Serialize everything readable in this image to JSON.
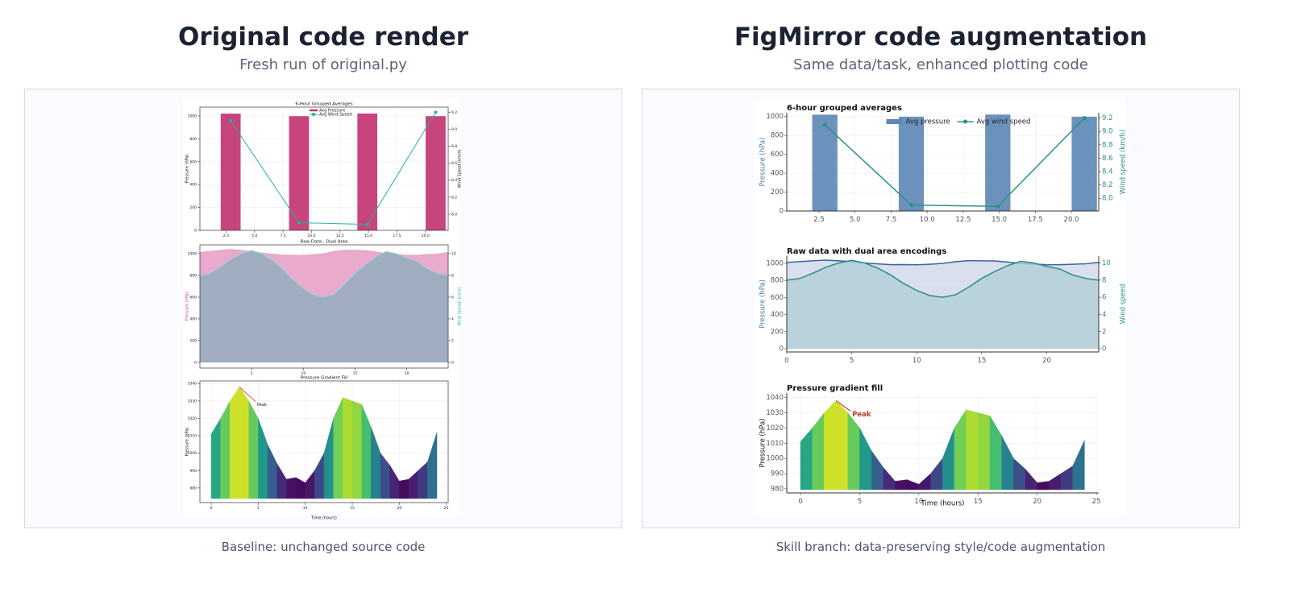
{
  "panels": [
    {
      "title": "Original code render",
      "subtitle": "Fresh run of original.py",
      "caption": "Baseline: unchanged source code"
    },
    {
      "title": "FigMirror code augmentation",
      "subtitle": "Same data/task, enhanced plotting code",
      "caption": "Skill branch: data-preserving style/code augmentation"
    }
  ],
  "chart_data": [
    {
      "type": "combo",
      "title": "6-Hour Grouped Averages",
      "x": [
        2.9,
        8.9,
        14.9,
        20.9
      ],
      "xlim": [
        0.2,
        22
      ],
      "xticks": [
        2.5,
        {
          "value": 5,
          "label": "5.0"
        },
        7.5,
        {
          "value": 10,
          "label": "10.0"
        },
        12.5,
        {
          "value": 15,
          "label": "15.0"
        },
        17.5,
        {
          "value": 20,
          "label": "20.0"
        }
      ],
      "ylim": [
        0,
        1077
      ],
      "yticks": [
        0,
        200,
        400,
        600,
        800,
        1000
      ],
      "y2lim": [
        7.81,
        9.26
      ],
      "y2ticks": [
        {
          "value": 8,
          "label": "8.0"
        },
        8.2,
        8.4,
        8.6,
        8.8,
        {
          "value": 9,
          "label": "9.0"
        },
        9.2
      ],
      "ylabel": "Pressure (hPa)",
      "y2label": "Wind Speed (km/h)",
      "grid": true,
      "legend": "upper center",
      "series": [
        {
          "name": "Avg Pressure",
          "color": "#c2306e",
          "values": [
            1020,
            998,
            1021,
            998
          ]
        },
        {
          "name": "Avg Wind Speed",
          "color": "#20b2aa",
          "axis": "y2",
          "values": [
            9.1,
            7.9,
            7.88,
            9.2
          ]
        }
      ]
    },
    {
      "type": "area",
      "title": "Raw Data - Dual Area",
      "x": [
        0,
        1,
        2,
        3,
        4,
        5,
        6,
        7,
        8,
        9,
        10,
        11,
        12,
        13,
        14,
        15,
        16,
        17,
        18,
        19,
        20,
        21,
        22,
        23,
        24
      ],
      "xlim": [
        0,
        24
      ],
      "xticks": [
        5,
        10,
        15,
        20
      ],
      "ylim": [
        -52,
        1081
      ],
      "yticks": [
        0,
        200,
        400,
        600,
        800,
        1000
      ],
      "y2lim": [
        -0.52,
        10.81
      ],
      "y2ticks": [
        0,
        2,
        4,
        6,
        8,
        10
      ],
      "ylabel": "Pressure (hPa)",
      "y2label": "Wind Speed (km/h)",
      "ylabel_color": "#d6457f",
      "y2label_color": "#20b2aa",
      "grid": true,
      "series": [
        {
          "color": "#e79ac2",
          "fill": "#e9aacd",
          "values": [
            1011,
            1020,
            1030,
            1038,
            1030,
            1020,
            1005,
            994,
            985,
            986,
            983,
            990,
            1000,
            1020,
            1032,
            1030,
            1028,
            1015,
            1000,
            993,
            984,
            985,
            990,
            995,
            1012
          ]
        },
        {
          "color": "#8fdad3",
          "fill": "#a0adc0",
          "axis": "y2",
          "values": [
            8.0,
            8.2,
            8.8,
            9.5,
            10.0,
            10.3,
            10.0,
            9.4,
            8.6,
            7.6,
            6.8,
            6.2,
            6.0,
            6.3,
            7.2,
            8.2,
            9.0,
            9.7,
            10.2,
            10.0,
            9.6,
            9.3,
            8.6,
            8.2,
            8.0
          ]
        }
      ]
    },
    {
      "type": "gradient",
      "title": "Pressure Gradient Fill",
      "x": [
        0,
        1,
        2,
        3,
        4,
        5,
        6,
        7,
        8,
        9,
        10,
        11,
        12,
        13,
        14,
        15,
        16,
        17,
        18,
        19,
        20,
        21,
        22,
        23,
        24
      ],
      "xlim": [
        -1.2,
        25.2
      ],
      "xticks": [
        0,
        5,
        10,
        15,
        20,
        25
      ],
      "ylim": [
        971.6,
        1041.5
      ],
      "yticks": [
        980,
        990,
        1000,
        1010,
        1020,
        1030,
        1040
      ],
      "ylabel": "Pressure (hPa)",
      "xlabel": "Time (hours)",
      "annotation": "Peak",
      "grid": true,
      "values": [
        1011,
        1020,
        1030,
        1038,
        1030,
        1020,
        1005,
        994,
        985,
        986,
        983,
        990,
        1000,
        1020,
        1032,
        1030,
        1028,
        1015,
        1000,
        993,
        984,
        985,
        990,
        995,
        1012
      ]
    },
    {
      "type": "combo",
      "title": "6-hour grouped averages",
      "x": [
        2.9,
        8.9,
        14.9,
        20.9
      ],
      "xlim": [
        0.26,
        21.9
      ],
      "xticks": [
        2.5,
        {
          "value": 5,
          "label": "5.0"
        },
        7.5,
        {
          "value": 10,
          "label": "10.0"
        },
        12.5,
        {
          "value": 15,
          "label": "15.0"
        },
        17.5,
        {
          "value": 20,
          "label": "20.0"
        }
      ],
      "ylim": [
        0,
        1040
      ],
      "yticks": [
        0,
        200,
        400,
        600,
        800,
        1000
      ],
      "y2lim": [
        7.81,
        9.28
      ],
      "y2ticks": [
        {
          "value": 8,
          "label": "8.0"
        },
        8.2,
        8.4,
        8.6,
        8.8,
        {
          "value": 9,
          "label": "9.0"
        },
        9.2
      ],
      "ylabel": "Pressure (hPa)",
      "y2label": "Wind speed (km/h)",
      "ylabel_color": "#4a78ac",
      "y2label_color": "#2a9088",
      "grid": true,
      "legend": "upper center",
      "series": [
        {
          "name": "Avg pressure",
          "color": "#5b86b5",
          "values": [
            1020,
            998,
            1021,
            998
          ]
        },
        {
          "name": "Avg wind speed",
          "color": "#2a9088",
          "axis": "y2",
          "values": [
            9.1,
            7.9,
            7.88,
            9.2
          ]
        }
      ]
    },
    {
      "type": "area",
      "title": "Raw data with dual area encodings",
      "x": [
        0,
        1,
        2,
        3,
        4,
        5,
        6,
        7,
        8,
        9,
        10,
        11,
        12,
        13,
        14,
        15,
        16,
        17,
        18,
        19,
        20,
        21,
        22,
        23,
        24
      ],
      "xlim": [
        0,
        24
      ],
      "xticks": [
        0,
        5,
        10,
        15,
        20
      ],
      "ylim": [
        -38,
        1085
      ],
      "yticks": [
        0,
        200,
        400,
        600,
        800,
        1000
      ],
      "y2lim": [
        -0.37,
        10.8
      ],
      "y2ticks": [
        0,
        2,
        4,
        6,
        8,
        10
      ],
      "ylabel": "Pressure (hPa)",
      "y2label": "Wind speed",
      "ylabel_color": "#4a78ac",
      "y2label_color": "#2a9088",
      "grid": true,
      "series": [
        {
          "color": "#3d64a3",
          "fill": "#ccd4e6",
          "values": [
            1011,
            1020,
            1030,
            1038,
            1030,
            1020,
            1005,
            994,
            985,
            986,
            983,
            990,
            1000,
            1020,
            1032,
            1030,
            1028,
            1015,
            1000,
            993,
            984,
            985,
            990,
            995,
            1012
          ]
        },
        {
          "color": "#2a8c8c",
          "fill": "#adcdd7",
          "axis": "y2",
          "values": [
            8.0,
            8.2,
            8.8,
            9.5,
            10.0,
            10.3,
            10.0,
            9.4,
            8.6,
            7.6,
            6.8,
            6.2,
            6.0,
            6.3,
            7.2,
            8.2,
            9.0,
            9.7,
            10.2,
            10.0,
            9.6,
            9.3,
            8.6,
            8.2,
            8.0
          ]
        }
      ]
    },
    {
      "type": "gradient",
      "title": "Pressure gradient fill",
      "x": [
        0,
        1,
        2,
        3,
        4,
        5,
        6,
        7,
        8,
        9,
        10,
        11,
        12,
        13,
        14,
        15,
        16,
        17,
        18,
        19,
        20,
        21,
        22,
        23,
        24
      ],
      "xlim": [
        -1.16,
        25.2
      ],
      "xticks": [
        0,
        5,
        10,
        15,
        20,
        25
      ],
      "ylim": [
        977.3,
        1043
      ],
      "yticks": [
        980,
        990,
        1000,
        1010,
        1020,
        1030,
        1040
      ],
      "ylabel": "Pressure (hPa)",
      "xlabel": "Time (hours)",
      "annotation": "Peak",
      "grid": true,
      "values": [
        1011,
        1020,
        1030,
        1038,
        1030,
        1020,
        1005,
        994,
        985,
        986,
        983,
        990,
        1000,
        1020,
        1032,
        1030,
        1028,
        1015,
        1000,
        993,
        984,
        985,
        990,
        995,
        1012
      ]
    }
  ]
}
